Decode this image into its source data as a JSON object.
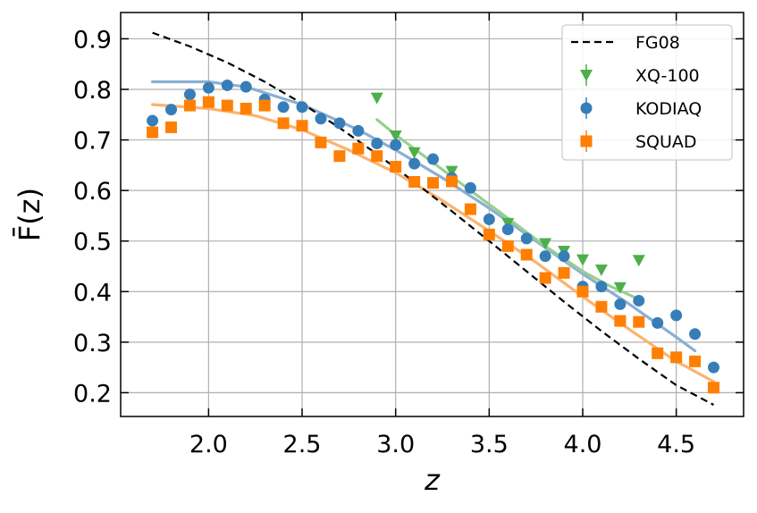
{
  "chart_data": {
    "type": "scatter",
    "title": "",
    "xlabel": "z",
    "ylabel": "F̄(z)",
    "xlim": [
      1.53,
      4.86
    ],
    "ylim": [
      0.153,
      0.952
    ],
    "xticks": [
      2.0,
      2.5,
      3.0,
      3.5,
      4.0,
      4.5
    ],
    "xtick_labels": [
      "2.0",
      "2.5",
      "3.0",
      "3.5",
      "4.0",
      "4.5"
    ],
    "yticks": [
      0.2,
      0.3,
      0.4,
      0.5,
      0.6,
      0.7,
      0.8,
      0.9
    ],
    "ytick_labels": [
      "0.2",
      "0.3",
      "0.4",
      "0.5",
      "0.6",
      "0.7",
      "0.8",
      "0.9"
    ],
    "grid": true,
    "legend_position": "top-right",
    "fit_curves": [
      {
        "series": "KODIAQ",
        "color": "#8ab0d3",
        "x": [
          1.7,
          2.0,
          2.2,
          2.5,
          2.8,
          3.0,
          3.25,
          3.5,
          3.75,
          4.0,
          4.25,
          4.5,
          4.6
        ],
        "y": [
          0.815,
          0.815,
          0.805,
          0.77,
          0.72,
          0.68,
          0.625,
          0.565,
          0.5,
          0.435,
          0.375,
          0.31,
          0.283
        ]
      },
      {
        "series": "SQUAD",
        "color": "#fcb36e",
        "x": [
          1.7,
          2.0,
          2.25,
          2.5,
          2.75,
          3.0,
          3.25,
          3.5,
          3.75,
          4.0,
          4.25,
          4.5,
          4.7
        ],
        "y": [
          0.77,
          0.762,
          0.748,
          0.72,
          0.68,
          0.635,
          0.58,
          0.52,
          0.458,
          0.39,
          0.325,
          0.262,
          0.222
        ]
      },
      {
        "series": "XQ-100",
        "color": "#96d08e",
        "x": [
          2.9,
          3.0,
          3.2,
          3.4,
          3.6,
          3.8,
          4.0,
          4.15,
          4.3
        ],
        "y": [
          0.74,
          0.71,
          0.655,
          0.6,
          0.545,
          0.49,
          0.44,
          0.41,
          0.385
        ]
      }
    ],
    "series": [
      {
        "name": "FG08",
        "kind": "line",
        "style": "dashed",
        "color": "#000000",
        "x": [
          1.7,
          1.9,
          2.1,
          2.3,
          2.5,
          2.7,
          2.9,
          3.1,
          3.3,
          3.5,
          3.7,
          3.9,
          4.1,
          4.3,
          4.5,
          4.7
        ],
        "y": [
          0.912,
          0.885,
          0.853,
          0.815,
          0.772,
          0.724,
          0.672,
          0.617,
          0.559,
          0.5,
          0.44,
          0.38,
          0.322,
          0.267,
          0.215,
          0.176
        ]
      },
      {
        "name": "XQ-100",
        "kind": "markers",
        "marker": "triangle-down",
        "color": "#4daf4a",
        "x": [
          2.9,
          3.0,
          3.1,
          3.3,
          3.6,
          3.8,
          3.9,
          4.0,
          4.1,
          4.2,
          4.3
        ],
        "y": [
          0.783,
          0.708,
          0.675,
          0.638,
          0.535,
          0.495,
          0.48,
          0.463,
          0.443,
          0.408,
          0.462
        ]
      },
      {
        "name": "KODIAQ",
        "kind": "markers",
        "marker": "circle",
        "color": "#377eb8",
        "x": [
          1.7,
          1.8,
          1.9,
          2.0,
          2.1,
          2.2,
          2.3,
          2.4,
          2.5,
          2.6,
          2.7,
          2.8,
          2.9,
          3.0,
          3.1,
          3.2,
          3.3,
          3.4,
          3.5,
          3.6,
          3.7,
          3.8,
          3.9,
          4.0,
          4.1,
          4.2,
          4.3,
          4.4,
          4.5,
          4.6,
          4.7
        ],
        "y": [
          0.738,
          0.76,
          0.79,
          0.803,
          0.808,
          0.805,
          0.78,
          0.765,
          0.765,
          0.742,
          0.733,
          0.718,
          0.693,
          0.69,
          0.653,
          0.662,
          0.625,
          0.605,
          0.543,
          0.523,
          0.505,
          0.47,
          0.47,
          0.41,
          0.41,
          0.375,
          0.382,
          0.338,
          0.353,
          0.316,
          0.25
        ]
      },
      {
        "name": "SQUAD",
        "kind": "markers",
        "marker": "square",
        "color": "#ff7f00",
        "x": [
          1.7,
          1.8,
          1.9,
          2.0,
          2.1,
          2.2,
          2.3,
          2.4,
          2.5,
          2.6,
          2.7,
          2.8,
          2.9,
          3.0,
          3.1,
          3.2,
          3.3,
          3.4,
          3.5,
          3.6,
          3.7,
          3.8,
          3.9,
          4.0,
          4.1,
          4.2,
          4.3,
          4.4,
          4.5,
          4.6,
          4.7
        ],
        "y": [
          0.715,
          0.725,
          0.768,
          0.775,
          0.768,
          0.762,
          0.768,
          0.733,
          0.728,
          0.695,
          0.668,
          0.683,
          0.668,
          0.647,
          0.617,
          0.615,
          0.618,
          0.563,
          0.513,
          0.49,
          0.473,
          0.427,
          0.437,
          0.4,
          0.37,
          0.342,
          0.34,
          0.278,
          0.27,
          0.262,
          0.21
        ]
      }
    ]
  }
}
